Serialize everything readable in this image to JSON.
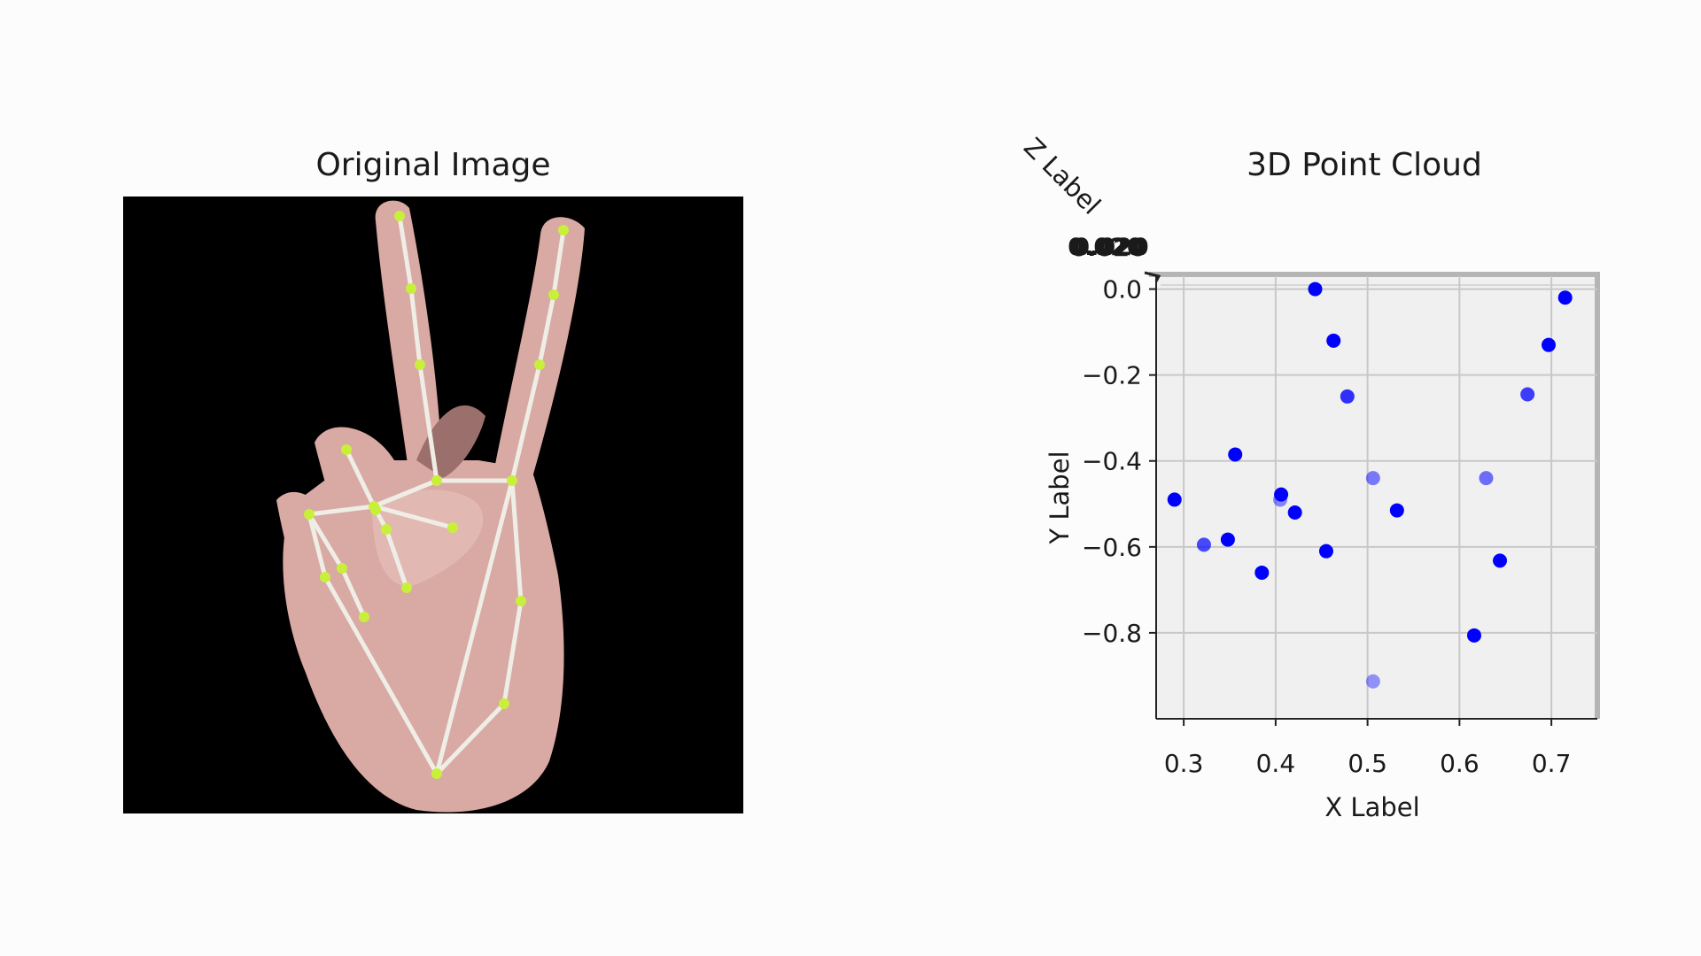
{
  "figure": {
    "left_panel_title": "Original Image",
    "right_panel_title": "3D Point Cloud"
  },
  "image_panel": {
    "background_color": "#000000",
    "skin_color": "#d9a9a4",
    "skeleton_color": "#efeee6",
    "landmark_color": "#c8f03a"
  },
  "chart_data": {
    "type": "scatter",
    "title": "3D Point Cloud",
    "xlabel": "X Label",
    "ylabel": "Y Label",
    "zlabel": "Z Label",
    "z_tick_text": "0.020",
    "xlim": [
      0.27,
      0.75
    ],
    "ylim": [
      -1.0,
      0.03
    ],
    "xticks": [
      0.3,
      0.4,
      0.5,
      0.6,
      0.7
    ],
    "xtick_labels": [
      "0.3",
      "0.4",
      "0.5",
      "0.6",
      "0.7"
    ],
    "yticks": [
      0.0,
      -0.2,
      -0.4,
      -0.6,
      -0.8
    ],
    "ytick_labels": [
      "0.0",
      "−0.2",
      "−0.4",
      "−0.6",
      "−0.8"
    ],
    "grid": true,
    "marker_color": "#0000ff",
    "points": [
      {
        "x": 0.443,
        "y": 0.0,
        "alpha": 1.0
      },
      {
        "x": 0.463,
        "y": -0.12,
        "alpha": 1.0
      },
      {
        "x": 0.478,
        "y": -0.25,
        "alpha": 0.8
      },
      {
        "x": 0.715,
        "y": -0.02,
        "alpha": 1.0
      },
      {
        "x": 0.697,
        "y": -0.13,
        "alpha": 1.0
      },
      {
        "x": 0.674,
        "y": -0.245,
        "alpha": 0.75
      },
      {
        "x": 0.356,
        "y": -0.385,
        "alpha": 1.0
      },
      {
        "x": 0.29,
        "y": -0.49,
        "alpha": 1.0
      },
      {
        "x": 0.322,
        "y": -0.595,
        "alpha": 0.7
      },
      {
        "x": 0.348,
        "y": -0.583,
        "alpha": 1.0
      },
      {
        "x": 0.385,
        "y": -0.66,
        "alpha": 1.0
      },
      {
        "x": 0.405,
        "y": -0.49,
        "alpha": 0.45
      },
      {
        "x": 0.406,
        "y": -0.478,
        "alpha": 1.0
      },
      {
        "x": 0.421,
        "y": -0.52,
        "alpha": 1.0
      },
      {
        "x": 0.455,
        "y": -0.61,
        "alpha": 1.0
      },
      {
        "x": 0.506,
        "y": -0.44,
        "alpha": 0.5
      },
      {
        "x": 0.532,
        "y": -0.515,
        "alpha": 1.0
      },
      {
        "x": 0.629,
        "y": -0.44,
        "alpha": 0.55
      },
      {
        "x": 0.644,
        "y": -0.632,
        "alpha": 1.0
      },
      {
        "x": 0.616,
        "y": -0.806,
        "alpha": 1.0
      },
      {
        "x": 0.506,
        "y": -0.913,
        "alpha": 0.4
      }
    ]
  }
}
